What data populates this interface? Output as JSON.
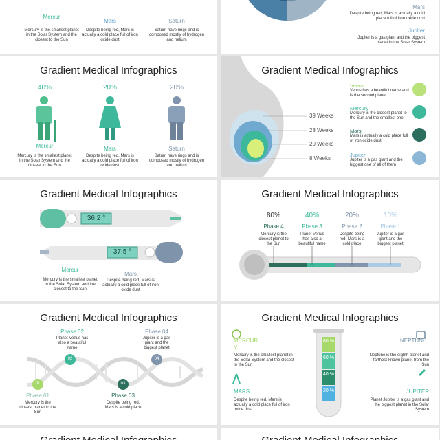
{
  "slides": [
    {
      "items": [
        {
          "name": "Mercur",
          "text": "Mercury is the smallest planet in the Solar System and the closest to the Sun"
        },
        {
          "name": "Mars",
          "text": "Despite being red, Mars is actually a cold place full of iron oxide dust"
        },
        {
          "name": "Saturn",
          "text": "Saturn have rings and is composed mostly of hydrogen and helium"
        }
      ]
    },
    {
      "items": [
        {
          "name": "Mars",
          "text": "Despite being red, Mars is actually a cold place full of iron oxide dust"
        },
        {
          "name": "Jupiter",
          "text": "Jupiter is a gas giant and the biggest planet in the Solar System"
        }
      ]
    },
    {
      "title": "Gradient Medical Infographics",
      "items": [
        {
          "percent": "40%",
          "name": "Mercur",
          "text": "Mercury is the smallest planet in the Solar System and the closest to the Sun"
        },
        {
          "percent": "20%",
          "name": "Mars",
          "text": "Despite being red, Mars is actually a cold place full of iron oxide dust"
        },
        {
          "percent": "20%",
          "name": "Saturn",
          "text": "Saturn have rings and is composed mostly of hydrogen and helium"
        }
      ]
    },
    {
      "title": "Gradient Medical Infographics",
      "weeks": [
        "39 Weeks",
        "28 Weeks",
        "20 Weeks",
        "8 Weeks"
      ],
      "items": [
        {
          "name": "Venus",
          "text": "Venus has a beautiful name and is the second planet"
        },
        {
          "name": "Mercury",
          "text": "Mercury is the closest planet to the Sun and the smallest one"
        },
        {
          "name": "Mars",
          "text": "Mars is actually a cold place full of iron oxide dust"
        },
        {
          "name": "Jupiter",
          "text": "Jupiter is a gas giant and the biggest one of all of them"
        }
      ]
    },
    {
      "title": "Gradient Medical Infographics",
      "readings": [
        "36.2 °",
        "37.5 °"
      ],
      "items": [
        {
          "name": "Mercur",
          "text": "Mercury is the smallest planet in the Solar System and the closest to the Sun"
        },
        {
          "name": "Mars",
          "text": "Despite being red, Mars is actually a cold place full of iron oxide dust"
        }
      ]
    },
    {
      "title": "Gradient Medical Infographics",
      "items": [
        {
          "percent": "80%",
          "phase": "Phase 4",
          "text": "Mercury is the closest planet to the Sun"
        },
        {
          "percent": "40%",
          "phase": "Phase 3",
          "text": "Planet Venus has also a beautiful name"
        },
        {
          "percent": "20%",
          "phase": "Phase 2",
          "text": "Despite being red, Mars is a cold place"
        },
        {
          "percent": "10%",
          "phase": "Phase 1",
          "text": "Jupiter is a gas giant and the biggest planet"
        }
      ]
    },
    {
      "title": "Gradient Medical Infographics",
      "items": [
        {
          "phase": "Phase 01",
          "number": "01",
          "text": "Mercury is the closest planet to the Sun"
        },
        {
          "phase": "Phase 02",
          "number": "02",
          "text": "Planet Venus has also a beautiful name"
        },
        {
          "phase": "Phase 03",
          "number": "03",
          "text": "Despite being red, Mars is a cold place"
        },
        {
          "phase": "Phase 04",
          "number": "04",
          "text": "Jupiter is a gas giant and the biggest planet"
        }
      ]
    },
    {
      "title": "Gradient Medical Infographics",
      "levels": [
        "80 %",
        "60 %",
        "40 %",
        "20 %"
      ],
      "items": [
        {
          "name": "MERCURY",
          "text": "Mercury is the smallest planet in the Solar System and the closest to the Sun"
        },
        {
          "name": "MARS",
          "text": "Despite being red, Mars is actually a cold place full of iron oxide dust"
        },
        {
          "name": "NEPTUNE",
          "text": "Neptune is the eighth planet and farthest-known planet from the Sun"
        },
        {
          "name": "JUPITER",
          "text": "Planet Jupiter is a gas giant and the biggest planet in the Solar System"
        }
      ]
    },
    {
      "title": "Gradient Medical Infographics"
    },
    {
      "title": "Gradient Medical Infographics"
    }
  ]
}
